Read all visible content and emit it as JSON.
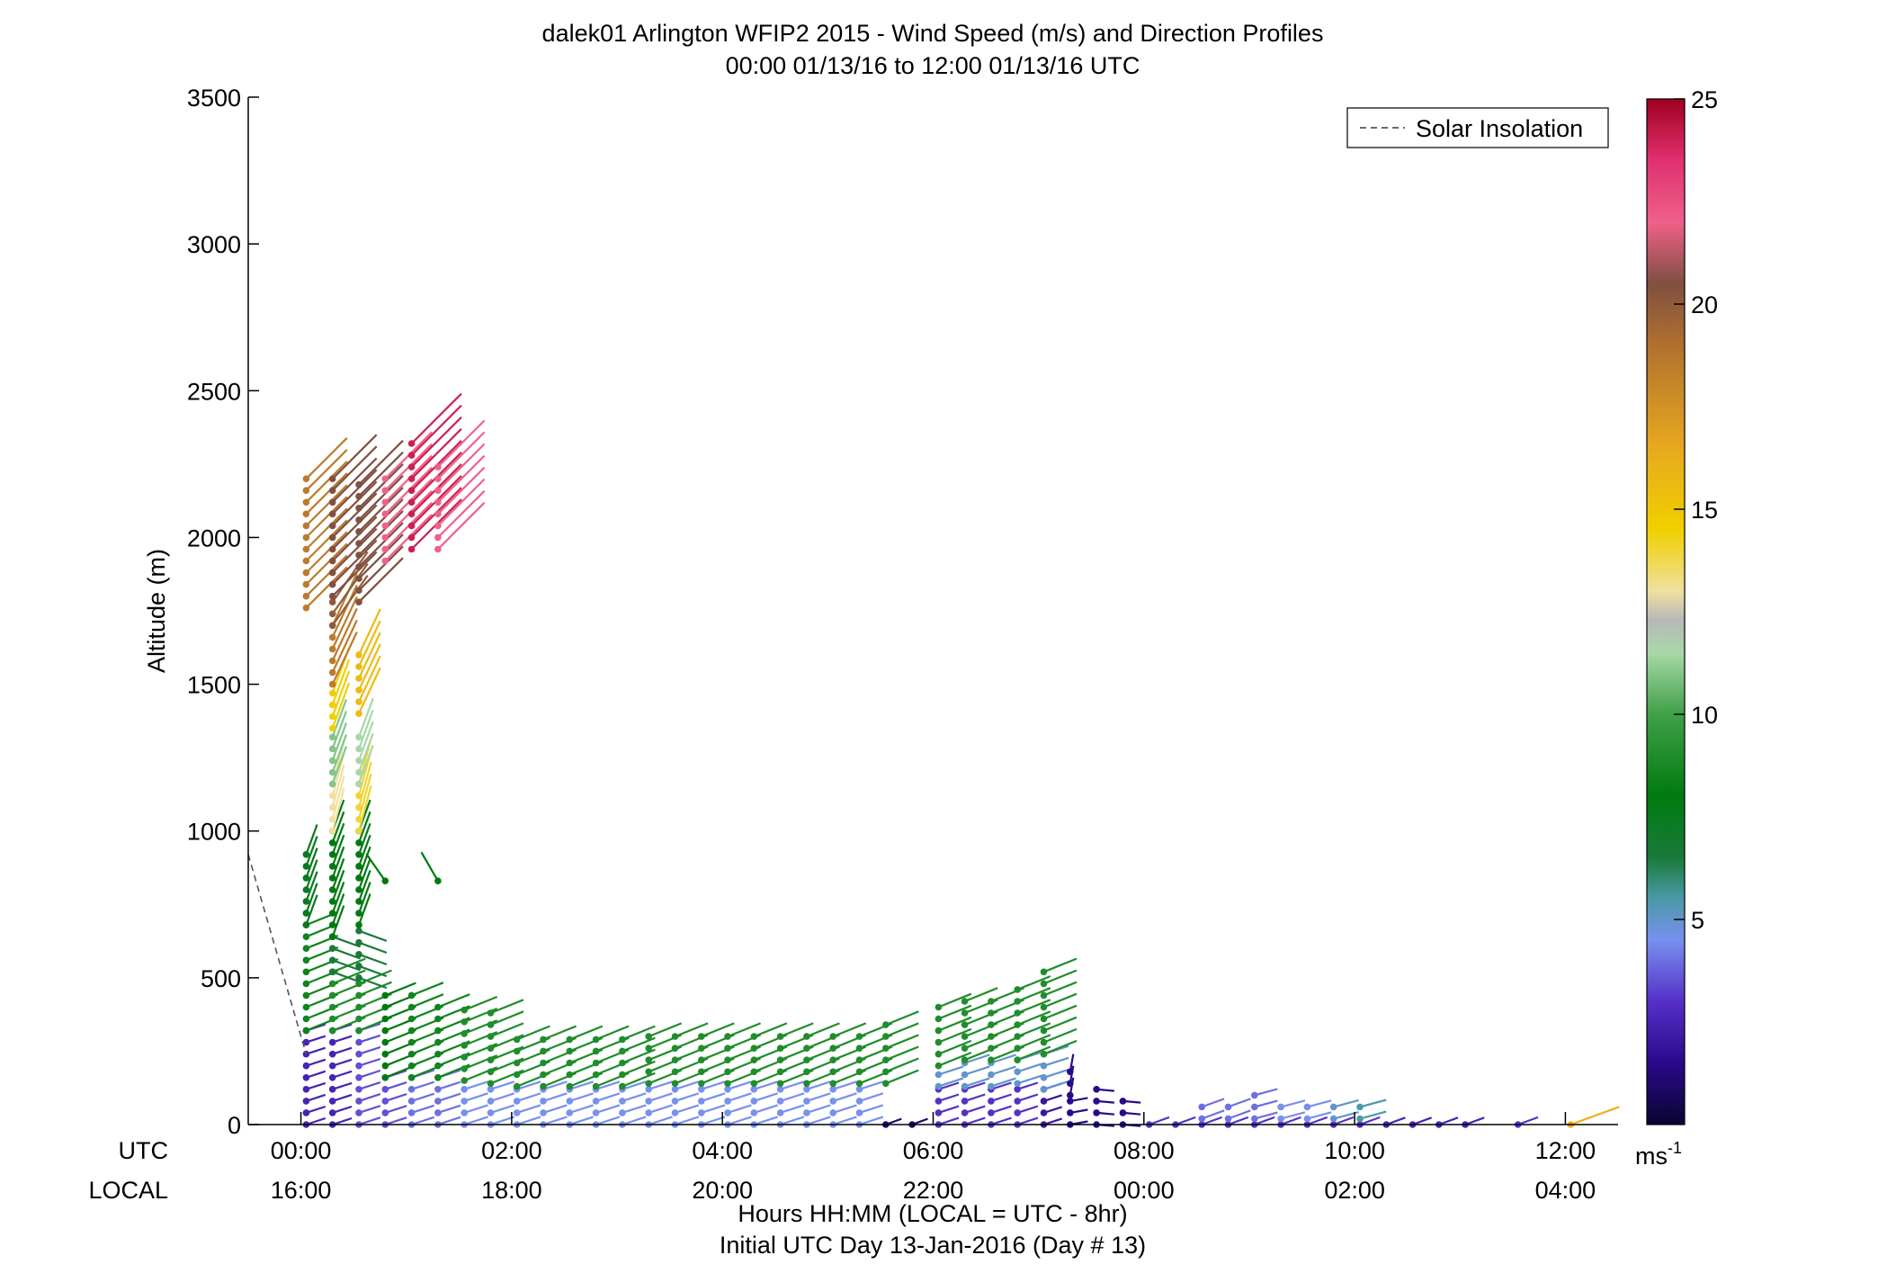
{
  "chart_data": {
    "type": "wind-barb-profile",
    "title": "dalek01 Arlington WFIP2 2015 - Wind Speed (m/s) and Direction Profiles",
    "subtitle": "00:00 01/13/16 to 12:00 01/13/16  UTC",
    "ylabel": "Altitude (m)",
    "xlabel": "Hours HH:MM  (LOCAL = UTC - 8hr)",
    "xlabel2": "Initial UTC Day 13-Jan-2016 (Day # 13)",
    "ylim": [
      0,
      3500
    ],
    "yticks": [
      "0",
      "500",
      "1000",
      "1500",
      "2000",
      "2500",
      "3000",
      "3500"
    ],
    "xlim_hours": [
      -0.5,
      12.5
    ],
    "utc_row_label": "UTC",
    "local_row_label": "LOCAL",
    "xticks_utc": [
      "00:00",
      "02:00",
      "04:00",
      "06:00",
      "08:00",
      "10:00",
      "12:00"
    ],
    "xticks_local": [
      "16:00",
      "18:00",
      "20:00",
      "22:00",
      "00:00",
      "02:00",
      "04:00"
    ],
    "legend": {
      "entry": "Solar Insolation",
      "style": "dashed",
      "placement": "top-right"
    },
    "solar_insolation_line": [
      {
        "t": -0.5,
        "alt": 920
      },
      {
        "t": 0.05,
        "alt": 240
      }
    ],
    "colorbar": {
      "min": 0,
      "max": 25,
      "ticks": [
        "5",
        "10",
        "15",
        "20",
        "25"
      ],
      "unit": "ms",
      "unit_exp": "-1",
      "stops": [
        {
          "v": 0,
          "c": "#0a0430"
        },
        {
          "v": 1.5,
          "c": "#2a0a8a"
        },
        {
          "v": 3,
          "c": "#5530c8"
        },
        {
          "v": 4.5,
          "c": "#7890ee"
        },
        {
          "v": 5.5,
          "c": "#4a9aa8"
        },
        {
          "v": 6.5,
          "c": "#1a7a3a"
        },
        {
          "v": 8,
          "c": "#007a10"
        },
        {
          "v": 10,
          "c": "#40a048"
        },
        {
          "v": 11.5,
          "c": "#a8d8a8"
        },
        {
          "v": 12.3,
          "c": "#b8b8b8"
        },
        {
          "v": 13,
          "c": "#f0e0a0"
        },
        {
          "v": 14.5,
          "c": "#f0d000"
        },
        {
          "v": 16.5,
          "c": "#e8a820"
        },
        {
          "v": 19,
          "c": "#b07030"
        },
        {
          "v": 20.5,
          "c": "#805040"
        },
        {
          "v": 22,
          "c": "#f0608a"
        },
        {
          "v": 23.5,
          "c": "#e03070"
        },
        {
          "v": 25,
          "c": "#a00020"
        }
      ]
    },
    "profiles": [
      {
        "t": 0.05,
        "levels": [
          [
            0,
            320,
            2.5,
            252
          ],
          [
            320,
            680,
            8.5,
            248
          ],
          [
            680,
            930,
            7.5,
            200
          ],
          [
            1760,
            2200,
            18.5,
            225
          ]
        ]
      },
      {
        "t": 0.3,
        "levels": [
          [
            0,
            320,
            2.5,
            252
          ],
          [
            320,
            520,
            9,
            248
          ],
          [
            520,
            640,
            6.5,
            290
          ],
          [
            640,
            1000,
            8,
            200
          ],
          [
            1000,
            1160,
            13,
            195
          ],
          [
            1160,
            1350,
            11,
            200
          ],
          [
            1350,
            1500,
            14.5,
            200
          ],
          [
            1500,
            1700,
            18.5,
            205
          ],
          [
            1700,
            1800,
            20,
            215
          ],
          [
            1800,
            2200,
            20.5,
            225
          ]
        ]
      },
      {
        "t": 0.55,
        "levels": [
          [
            0,
            320,
            3.5,
            252
          ],
          [
            320,
            500,
            9,
            248
          ],
          [
            500,
            680,
            6.5,
            290
          ],
          [
            680,
            1000,
            8,
            200
          ],
          [
            1000,
            1160,
            14,
            195
          ],
          [
            1160,
            1350,
            11.5,
            200
          ],
          [
            1400,
            1600,
            15.5,
            205
          ],
          [
            1780,
            2200,
            20.5,
            225
          ]
        ]
      },
      {
        "t": 0.8,
        "levels": [
          [
            0,
            160,
            3.5,
            252
          ],
          [
            160,
            440,
            8,
            248
          ],
          [
            830,
            840,
            8,
            145
          ],
          [
            1920,
            2200,
            22,
            225
          ]
        ]
      },
      {
        "t": 1.05,
        "levels": [
          [
            0,
            160,
            4,
            252
          ],
          [
            160,
            440,
            8.5,
            248
          ],
          [
            1960,
            2320,
            24,
            225
          ]
        ]
      },
      {
        "t": 1.3,
        "levels": [
          [
            0,
            160,
            4,
            252
          ],
          [
            160,
            420,
            8.5,
            248
          ],
          [
            830,
            840,
            8,
            150
          ],
          [
            1960,
            2240,
            22,
            225
          ]
        ]
      },
      {
        "t": 1.55,
        "levels": [
          [
            0,
            150,
            4.5,
            252
          ],
          [
            150,
            400,
            9,
            248
          ]
        ]
      },
      {
        "t": 1.8,
        "levels": [
          [
            0,
            140,
            4.5,
            252
          ],
          [
            140,
            380,
            9,
            248
          ]
        ]
      },
      {
        "t": 2.05,
        "levels": [
          [
            0,
            130,
            4.5,
            252
          ],
          [
            130,
            290,
            9,
            248
          ]
        ]
      },
      {
        "t": 2.3,
        "levels": [
          [
            0,
            130,
            4.5,
            252
          ],
          [
            130,
            290,
            9,
            248
          ]
        ]
      },
      {
        "t": 2.55,
        "levels": [
          [
            0,
            130,
            4.5,
            252
          ],
          [
            130,
            290,
            9,
            248
          ]
        ]
      },
      {
        "t": 2.8,
        "levels": [
          [
            0,
            130,
            4.5,
            252
          ],
          [
            130,
            310,
            9,
            248
          ]
        ]
      },
      {
        "t": 3.05,
        "levels": [
          [
            0,
            130,
            4.5,
            252
          ],
          [
            130,
            310,
            9,
            248
          ]
        ]
      },
      {
        "t": 3.3,
        "levels": [
          [
            0,
            140,
            4.5,
            252
          ],
          [
            140,
            310,
            9,
            248
          ]
        ]
      },
      {
        "t": 3.55,
        "levels": [
          [
            0,
            140,
            4.5,
            252
          ],
          [
            140,
            310,
            9,
            248
          ]
        ]
      },
      {
        "t": 3.8,
        "levels": [
          [
            0,
            140,
            4.5,
            252
          ],
          [
            140,
            310,
            9,
            248
          ]
        ]
      },
      {
        "t": 4.05,
        "levels": [
          [
            0,
            140,
            4.5,
            252
          ],
          [
            140,
            310,
            9,
            248
          ]
        ]
      },
      {
        "t": 4.3,
        "levels": [
          [
            0,
            140,
            4.5,
            252
          ],
          [
            140,
            330,
            9,
            248
          ]
        ]
      },
      {
        "t": 4.55,
        "levels": [
          [
            0,
            140,
            4.5,
            252
          ],
          [
            140,
            330,
            9,
            248
          ]
        ]
      },
      {
        "t": 4.8,
        "levels": [
          [
            0,
            140,
            4.5,
            252
          ],
          [
            140,
            330,
            9,
            248
          ]
        ]
      },
      {
        "t": 5.05,
        "levels": [
          [
            0,
            140,
            4.5,
            252
          ],
          [
            140,
            330,
            9,
            248
          ]
        ]
      },
      {
        "t": 5.3,
        "levels": [
          [
            0,
            140,
            4.5,
            252
          ],
          [
            140,
            330,
            9,
            248
          ]
        ]
      },
      {
        "t": 5.55,
        "levels": [
          [
            0,
            20,
            1,
            250
          ],
          [
            140,
            360,
            9,
            248
          ]
        ]
      },
      {
        "t": 5.8,
        "levels": [
          [
            0,
            20,
            1,
            250
          ]
        ]
      },
      {
        "t": 6.05,
        "levels": [
          [
            0,
            130,
            3,
            252
          ],
          [
            130,
            200,
            5,
            252
          ],
          [
            200,
            400,
            9,
            248
          ]
        ]
      },
      {
        "t": 6.3,
        "levels": [
          [
            0,
            130,
            3,
            252
          ],
          [
            130,
            220,
            5,
            252
          ],
          [
            220,
            420,
            9,
            248
          ]
        ]
      },
      {
        "t": 6.55,
        "levels": [
          [
            0,
            130,
            3,
            252
          ],
          [
            130,
            220,
            5,
            252
          ],
          [
            220,
            440,
            9,
            248
          ]
        ]
      },
      {
        "t": 6.8,
        "levels": [
          [
            0,
            140,
            3,
            252
          ],
          [
            140,
            220,
            5,
            252
          ],
          [
            220,
            460,
            9,
            248
          ]
        ]
      },
      {
        "t": 7.05,
        "levels": [
          [
            0,
            120,
            2,
            252
          ],
          [
            120,
            240,
            5,
            252
          ],
          [
            240,
            520,
            9,
            248
          ]
        ]
      },
      {
        "t": 7.3,
        "levels": [
          [
            0,
            100,
            1.5,
            260
          ],
          [
            100,
            200,
            1.5,
            190
          ]
        ]
      },
      {
        "t": 7.55,
        "levels": [
          [
            0,
            130,
            1.5,
            275
          ]
        ]
      },
      {
        "t": 7.8,
        "levels": [
          [
            0,
            80,
            1.5,
            275
          ]
        ]
      },
      {
        "t": 8.05,
        "levels": [
          [
            0,
            20,
            3,
            250
          ]
        ]
      },
      {
        "t": 8.3,
        "levels": [
          [
            0,
            20,
            3,
            250
          ]
        ]
      },
      {
        "t": 8.55,
        "levels": [
          [
            0,
            20,
            3,
            250
          ],
          [
            20,
            80,
            4,
            250
          ]
        ]
      },
      {
        "t": 8.8,
        "levels": [
          [
            0,
            20,
            3,
            250
          ],
          [
            20,
            90,
            4,
            250
          ]
        ]
      },
      {
        "t": 9.05,
        "levels": [
          [
            0,
            20,
            3,
            250
          ],
          [
            20,
            110,
            4,
            255
          ]
        ]
      },
      {
        "t": 9.3,
        "levels": [
          [
            0,
            20,
            3,
            250
          ],
          [
            20,
            80,
            4.5,
            255
          ]
        ]
      },
      {
        "t": 9.55,
        "levels": [
          [
            0,
            20,
            3,
            250
          ],
          [
            20,
            80,
            4.5,
            255
          ]
        ]
      },
      {
        "t": 9.8,
        "levels": [
          [
            0,
            20,
            3,
            250
          ],
          [
            20,
            80,
            5,
            255
          ]
        ]
      },
      {
        "t": 10.05,
        "levels": [
          [
            0,
            20,
            3,
            250
          ],
          [
            20,
            60,
            5.5,
            255
          ]
        ]
      },
      {
        "t": 10.3,
        "levels": [
          [
            0,
            10,
            2.5,
            250
          ]
        ]
      },
      {
        "t": 10.55,
        "levels": [
          [
            0,
            10,
            2.5,
            250
          ]
        ]
      },
      {
        "t": 10.8,
        "levels": [
          [
            0,
            10,
            2.5,
            250
          ]
        ]
      },
      {
        "t": 11.05,
        "levels": [
          [
            0,
            10,
            2.5,
            250
          ]
        ]
      },
      {
        "t": 11.55,
        "levels": [
          [
            0,
            10,
            3,
            250
          ]
        ]
      },
      {
        "t": 12.05,
        "levels": [
          [
            0,
            5,
            16,
            250
          ]
        ]
      }
    ]
  }
}
